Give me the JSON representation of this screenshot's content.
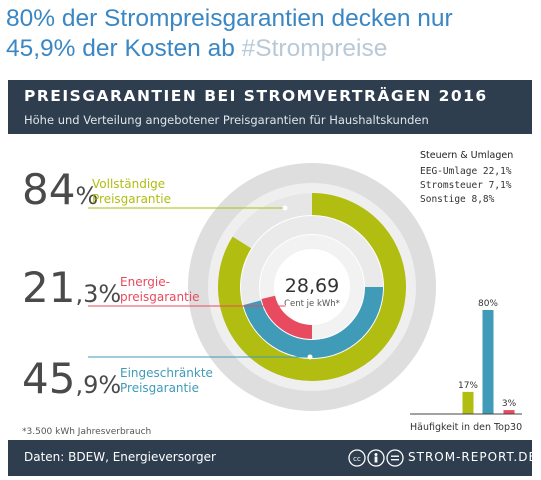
{
  "tweet": {
    "line1": "80% der Strompreisgarantien decken nur",
    "line2_text": "45,9% der Kosten ab ",
    "line2_hashtag": "#Strompreise",
    "color": "#3a87c4"
  },
  "infographic": {
    "title": "PREISGARANTIEN BEI STROMVERTRÄGEN 2016",
    "subtitle": "Höhe und Verteilung angebotener Preisgarantien für Haushaltskunden",
    "footer_source": "Daten: BDEW, Energieversorger",
    "footer_brand": "STROM-REPORT.DE",
    "footnote": "*3.500 kWh Jahresverbrauch",
    "header_color": "#2f3e4f"
  },
  "chart_data": [
    {
      "type": "pie",
      "name": "rings",
      "center_value": "28,69",
      "center_unit": "Cent je kWh*",
      "series": [
        {
          "label": "Vollständige Preisgarantie",
          "value_text": "84%",
          "value": 84,
          "color": "#b1bd10"
        },
        {
          "label": "Energie-preisgarantie",
          "value_text": "21,3%",
          "value": 21.3,
          "color": "#e84a5f"
        },
        {
          "label": "Eingeschränkte Preisgarantie",
          "value_text": "45,9%",
          "value": 45.9,
          "color": "#3f9bb8"
        }
      ],
      "labels": [
        {
          "big_int": "84",
          "big_suffix": "%",
          "line1": "Vollständige",
          "line2": "Preisgarantie"
        },
        {
          "big_int": "21",
          "big_suffix": ",3%",
          "line1": "Energie-",
          "line2": "preisgarantie"
        },
        {
          "big_int": "45",
          "big_suffix": ",9%",
          "line1": "Eingeschränkte",
          "line2": "Preisgarantie"
        }
      ],
      "taxes": {
        "title": "Steuern & Umlagen",
        "items": [
          "EEG-Umlage 22,1%",
          "Stromsteuer 7,1%",
          "Sonstige 8,8%"
        ]
      }
    },
    {
      "type": "bar",
      "name": "haeufigkeit",
      "xlabel": "Häufigkeit in den Top30",
      "categories": [
        "Vollständige Preisgarantie",
        "Eingeschränkte Preisgarantie",
        "Energiepreisgarantie"
      ],
      "values": [
        17,
        80,
        3
      ],
      "value_labels": [
        "17%",
        "80%",
        "3%"
      ],
      "colors": [
        "#b1bd10",
        "#3f9bb8",
        "#e84a5f"
      ],
      "ylim": [
        0,
        80
      ]
    }
  ]
}
